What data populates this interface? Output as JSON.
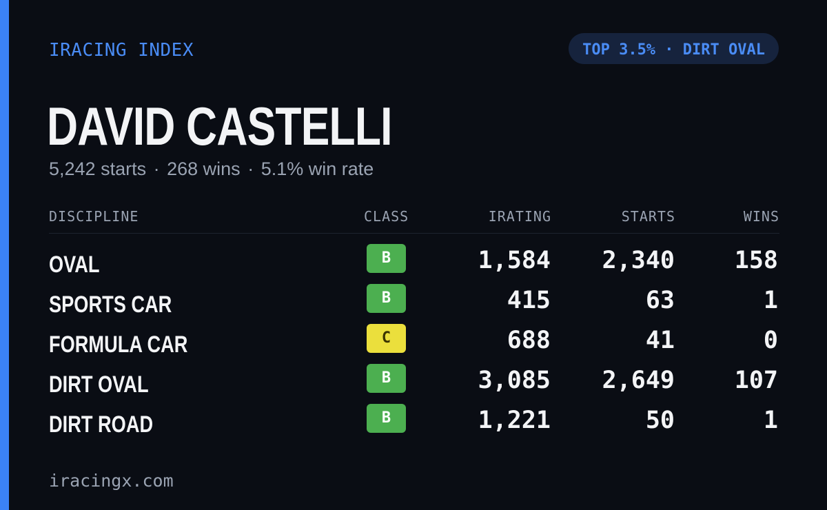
{
  "brand": "IRACING INDEX",
  "badge": "TOP 3.5% · DIRT OVAL",
  "driver": {
    "name": "DAVID CASTELLI",
    "starts": "5,242 starts",
    "wins": "268 wins",
    "win_rate": "5.1% win rate",
    "separator": "·"
  },
  "table": {
    "headers": {
      "discipline": "DISCIPLINE",
      "class": "CLASS",
      "irating": "IRATING",
      "starts": "STARTS",
      "wins": "WINS"
    },
    "rows": [
      {
        "discipline": "OVAL",
        "class": "B",
        "irating": "1,584",
        "starts": "2,340",
        "wins": "158"
      },
      {
        "discipline": "SPORTS CAR",
        "class": "B",
        "irating": "415",
        "starts": "63",
        "wins": "1"
      },
      {
        "discipline": "FORMULA CAR",
        "class": "C",
        "irating": "688",
        "starts": "41",
        "wins": "0"
      },
      {
        "discipline": "DIRT OVAL",
        "class": "B",
        "irating": "3,085",
        "starts": "2,649",
        "wins": "107"
      },
      {
        "discipline": "DIRT ROAD",
        "class": "B",
        "irating": "1,221",
        "starts": "50",
        "wins": "1"
      }
    ]
  },
  "class_colors": {
    "B": "#4caf50",
    "C": "#ebdf3c"
  },
  "accent_color": "#3b82f6",
  "footer": "iracingx.com"
}
